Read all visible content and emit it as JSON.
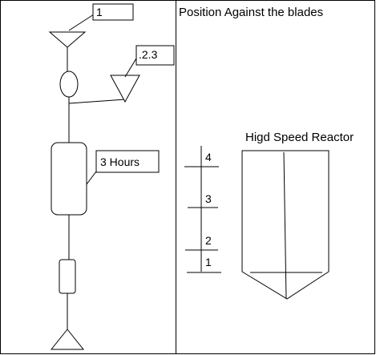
{
  "left_panel": {
    "callout_1": "1",
    "callout_2_3": ".2.3",
    "callout_3_hours": "3 Hours"
  },
  "right_panel": {
    "title": "Position Against the blades",
    "reactor_title": "Higd Speed Reactor",
    "scale_labels": [
      "4",
      "3",
      "2",
      "1"
    ]
  }
}
